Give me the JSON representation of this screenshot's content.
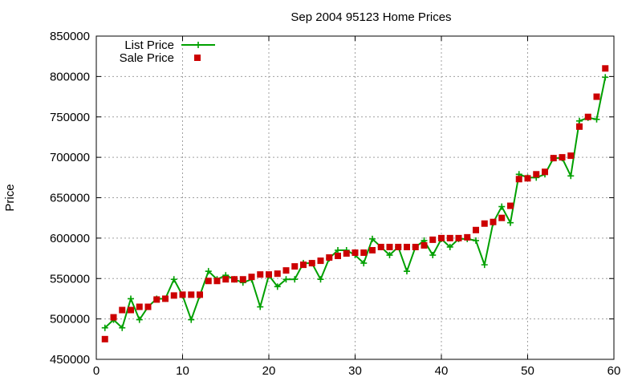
{
  "chart_data": {
    "type": "line",
    "title": "Sep 2004 95123 Home Prices",
    "xlabel": "",
    "ylabel": "Price",
    "xlim": [
      0,
      60
    ],
    "ylim": [
      450000,
      850000
    ],
    "xticks": [
      0,
      10,
      20,
      30,
      40,
      50,
      60
    ],
    "yticks": [
      450000,
      500000,
      550000,
      600000,
      650000,
      700000,
      750000,
      800000,
      850000
    ],
    "grid": true,
    "legend_position": "top-left",
    "series": [
      {
        "name": "List Price",
        "style": "line-with-plus-markers",
        "color": "#00a000",
        "x": [
          1,
          2,
          3,
          4,
          5,
          6,
          7,
          8,
          9,
          10,
          11,
          12,
          13,
          14,
          15,
          16,
          17,
          18,
          19,
          20,
          21,
          22,
          23,
          24,
          25,
          26,
          27,
          28,
          29,
          30,
          31,
          32,
          33,
          34,
          35,
          36,
          37,
          38,
          39,
          40,
          41,
          42,
          43,
          44,
          45,
          46,
          47,
          48,
          49,
          50,
          51,
          52,
          53,
          54,
          55,
          56,
          57,
          58,
          59
        ],
        "y": [
          489000,
          499000,
          489000,
          525000,
          499000,
          515000,
          525000,
          525000,
          549000,
          529000,
          499000,
          529000,
          559000,
          549000,
          554000,
          549000,
          545000,
          549000,
          515000,
          554000,
          540000,
          549000,
          549000,
          569000,
          569000,
          549000,
          575000,
          585000,
          585000,
          579000,
          569000,
          599000,
          589000,
          579000,
          589000,
          559000,
          589000,
          597000,
          579000,
          599000,
          589000,
          599000,
          599000,
          597000,
          567000,
          619000,
          639000,
          619000,
          679000,
          675000,
          675000,
          679000,
          699000,
          699000,
          677000,
          745000,
          749000,
          747000,
          799000
        ]
      },
      {
        "name": "Sale Price",
        "style": "square-markers",
        "color": "#cc0000",
        "x": [
          1,
          2,
          3,
          4,
          5,
          6,
          7,
          8,
          9,
          10,
          11,
          12,
          13,
          14,
          15,
          16,
          17,
          18,
          19,
          20,
          21,
          22,
          23,
          24,
          25,
          26,
          27,
          28,
          29,
          30,
          31,
          32,
          33,
          34,
          35,
          36,
          37,
          38,
          39,
          40,
          41,
          42,
          43,
          44,
          45,
          46,
          47,
          48,
          49,
          50,
          51,
          52,
          53,
          54,
          55,
          56,
          57,
          58,
          59
        ],
        "y": [
          475000,
          502000,
          511000,
          511000,
          515000,
          515000,
          524000,
          525000,
          529000,
          530000,
          530000,
          530000,
          547000,
          547000,
          549000,
          549000,
          549000,
          552000,
          555000,
          555000,
          556000,
          560000,
          565000,
          567000,
          569000,
          572000,
          576000,
          578000,
          581000,
          582000,
          582000,
          585000,
          589000,
          589000,
          589000,
          589000,
          589000,
          591000,
          598000,
          600000,
          600000,
          600000,
          601000,
          610000,
          618000,
          620000,
          625000,
          640000,
          673000,
          674000,
          679000,
          682000,
          699000,
          700000,
          702000,
          738000,
          750000,
          775000,
          810000
        ]
      }
    ]
  }
}
